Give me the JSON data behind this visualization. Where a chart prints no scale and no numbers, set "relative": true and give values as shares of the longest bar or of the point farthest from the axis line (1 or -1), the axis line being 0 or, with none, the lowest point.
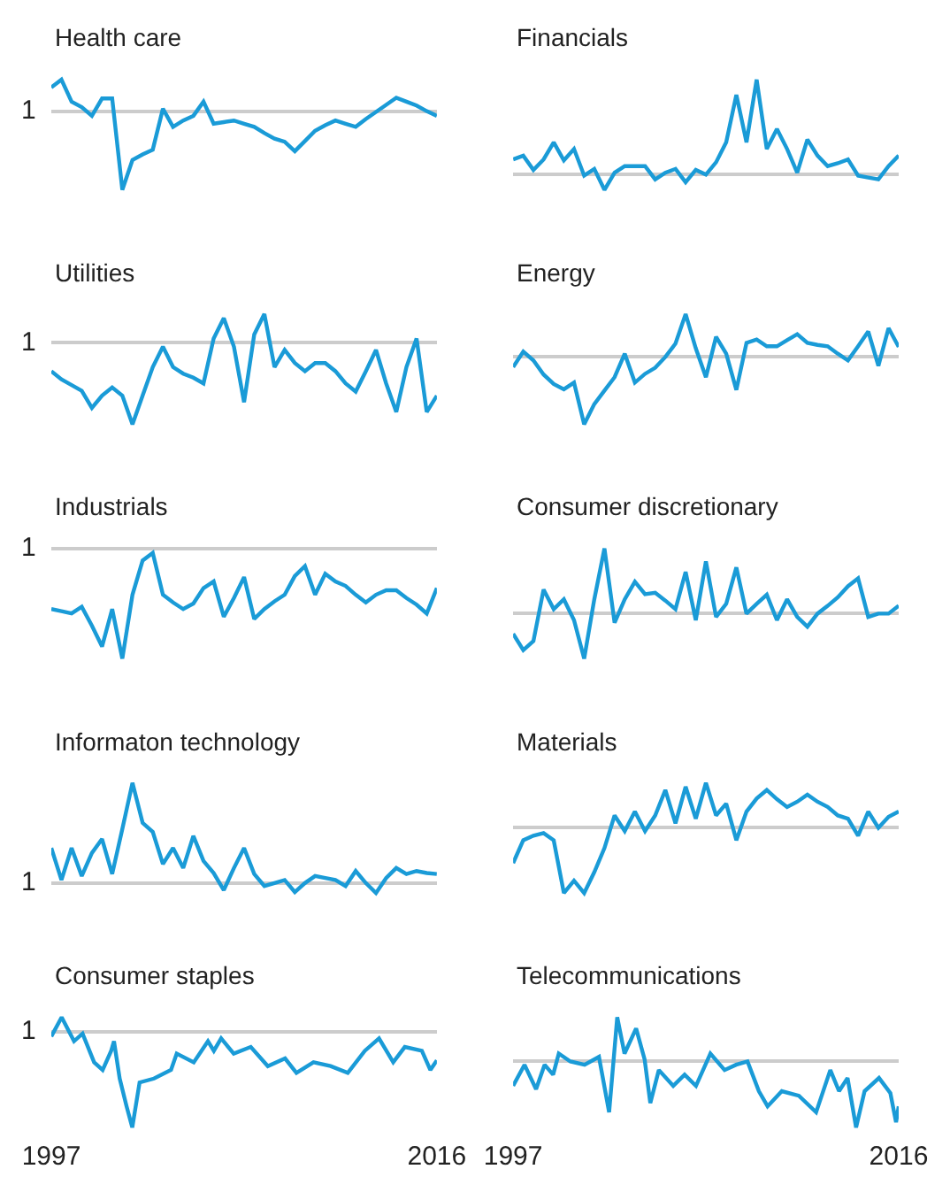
{
  "chart_data": [
    {
      "type": "line",
      "title": "Health care",
      "relative": true,
      "color": "#1a9bd7",
      "line_style": "solid",
      "marker": "none",
      "annotations": [
        "1"
      ],
      "categories": [
        null,
        null,
        null,
        null,
        null,
        null,
        null,
        null,
        null,
        null,
        null,
        null,
        null,
        null,
        null,
        null,
        null,
        null,
        null,
        null,
        null,
        null,
        null,
        null,
        null,
        null,
        null,
        null,
        null,
        null,
        null,
        null,
        null,
        null,
        null,
        null,
        null,
        null,
        null
      ],
      "values": [
        0.3,
        0.4,
        0.12,
        0.05,
        -0.06,
        0.16,
        0.16,
        -1,
        -0.62,
        -0.55,
        -0.49,
        0.03,
        -0.2,
        -0.12,
        -0.06,
        0.12,
        -0.16,
        -0.14,
        -0.12,
        -0.16,
        -0.2,
        -0.28,
        -0.35,
        -0.39,
        -0.51,
        -0.38,
        -0.25,
        -0.18,
        -0.12,
        -0.16,
        -0.2,
        -0.1,
        -0.01,
        0.08,
        0.17,
        0.12,
        0.07,
        0.0,
        -0.06
      ]
    },
    {
      "type": "line",
      "title": "Financials",
      "relative": true,
      "color": "#1a9bd7",
      "line_style": "solid",
      "marker": "none",
      "categories": [
        null,
        null,
        null,
        null,
        null,
        null,
        null,
        null,
        null,
        null,
        null,
        null,
        null,
        null,
        null,
        null,
        null,
        null,
        null,
        null,
        null,
        null,
        null,
        null,
        null,
        null,
        null,
        null,
        null,
        null,
        null,
        null,
        null,
        null,
        null,
        null,
        null,
        null,
        null
      ],
      "values": [
        0.16,
        0.2,
        0.05,
        0.16,
        0.34,
        0.15,
        0.27,
        -0.01,
        0.06,
        -0.16,
        0.02,
        0.09,
        0.09,
        0.09,
        -0.05,
        0.02,
        0.06,
        -0.08,
        0.05,
        0,
        0.13,
        0.34,
        0.84,
        0.34,
        1,
        0.27,
        0.48,
        0.27,
        0.02,
        0.37,
        0.2,
        0.09,
        0.12,
        0.16,
        -0.01,
        -0.03,
        -0.05,
        0.09,
        0.2
      ]
    },
    {
      "type": "line",
      "title": "Utilities",
      "relative": true,
      "color": "#1a9bd7",
      "line_style": "solid",
      "marker": "none",
      "annotations": [
        "1"
      ],
      "categories": [
        null,
        null,
        null,
        null,
        null,
        null,
        null,
        null,
        null,
        null,
        null,
        null,
        null,
        null,
        null,
        null,
        null,
        null,
        null,
        null,
        null,
        null,
        null,
        null,
        null,
        null,
        null,
        null,
        null,
        null,
        null,
        null,
        null,
        null,
        null,
        null,
        null,
        null,
        null
      ],
      "values": [
        -0.35,
        -0.45,
        -0.52,
        -0.59,
        -0.8,
        -0.65,
        -0.55,
        -0.65,
        -1,
        -0.65,
        -0.3,
        -0.05,
        -0.3,
        -0.38,
        -0.43,
        -0.5,
        0.05,
        0.3,
        -0.05,
        -0.73,
        0.1,
        0.35,
        -0.3,
        -0.09,
        -0.25,
        -0.35,
        -0.25,
        -0.25,
        -0.35,
        -0.5,
        -0.6,
        -0.35,
        -0.09,
        -0.5,
        -0.85,
        -0.3,
        0.05,
        -0.85,
        -0.65
      ]
    },
    {
      "type": "line",
      "title": "Energy",
      "relative": true,
      "color": "#1a9bd7",
      "line_style": "solid",
      "marker": "none",
      "categories": [
        null,
        null,
        null,
        null,
        null,
        null,
        null,
        null,
        null,
        null,
        null,
        null,
        null,
        null,
        null,
        null,
        null,
        null,
        null,
        null,
        null,
        null,
        null,
        null,
        null,
        null,
        null,
        null,
        null,
        null,
        null,
        null,
        null,
        null,
        null,
        null,
        null,
        null,
        null
      ],
      "values": [
        -0.15,
        0.08,
        -0.05,
        -0.26,
        -0.4,
        -0.48,
        -0.38,
        -1,
        -0.7,
        -0.5,
        -0.3,
        0.05,
        -0.38,
        -0.25,
        -0.16,
        0,
        0.2,
        0.64,
        0.13,
        -0.3,
        0.3,
        0.05,
        -0.49,
        0.21,
        0.26,
        0.16,
        0.16,
        0.25,
        0.34,
        0.21,
        0.18,
        0.16,
        0.05,
        -0.05,
        0.16,
        0.38,
        -0.13,
        0.43,
        0.15
      ]
    },
    {
      "type": "line",
      "title": "Industrials",
      "relative": true,
      "color": "#1a9bd7",
      "line_style": "solid",
      "marker": "none",
      "annotations": [
        "1"
      ],
      "categories": [
        null,
        null,
        null,
        null,
        null,
        null,
        null,
        null,
        null,
        null,
        null,
        null,
        null,
        null,
        null,
        null,
        null,
        null,
        null,
        null,
        null,
        null,
        null,
        null,
        null,
        null,
        null,
        null,
        null,
        null,
        null,
        null,
        null,
        null,
        null,
        null,
        null,
        null,
        null
      ],
      "values": [
        -0.55,
        -0.57,
        -0.59,
        -0.53,
        -0.7,
        -0.89,
        -0.55,
        -1,
        -0.42,
        -0.11,
        -0.04,
        -0.42,
        -0.49,
        -0.55,
        -0.5,
        -0.36,
        -0.3,
        -0.62,
        -0.45,
        -0.26,
        -0.64,
        -0.55,
        -0.48,
        -0.42,
        -0.25,
        -0.16,
        -0.42,
        -0.23,
        -0.3,
        -0.34,
        -0.42,
        -0.49,
        -0.42,
        -0.38,
        -0.38,
        -0.45,
        -0.51,
        -0.59,
        -0.36
      ]
    },
    {
      "type": "line",
      "title": "Consumer discretionary",
      "relative": true,
      "color": "#1a9bd7",
      "line_style": "solid",
      "marker": "none",
      "categories": [
        null,
        null,
        null,
        null,
        null,
        null,
        null,
        null,
        null,
        null,
        null,
        null,
        null,
        null,
        null,
        null,
        null,
        null,
        null,
        null,
        null,
        null,
        null,
        null,
        null,
        null,
        null,
        null,
        null,
        null,
        null,
        null,
        null,
        null,
        null,
        null,
        null,
        null,
        null
      ],
      "values": [
        -0.31,
        -0.56,
        -0.42,
        0.37,
        0.07,
        0.22,
        -0.1,
        -0.69,
        0.22,
        1,
        -0.14,
        0.22,
        0.49,
        0.3,
        0.32,
        0.2,
        0.07,
        0.64,
        -0.1,
        0.8,
        -0.05,
        0.15,
        0.71,
        0,
        0.15,
        0.29,
        -0.1,
        0.22,
        -0.05,
        -0.2,
        0,
        0.12,
        0.25,
        0.42,
        0.54,
        -0.05,
        0,
        0,
        0.12
      ]
    },
    {
      "type": "line",
      "title": "Informaton technology",
      "relative": true,
      "color": "#1a9bd7",
      "line_style": "solid",
      "marker": "none",
      "annotations": [
        "1"
      ],
      "categories": [
        null,
        null,
        null,
        null,
        null,
        null,
        null,
        null,
        null,
        null,
        null,
        null,
        null,
        null,
        null,
        null,
        null,
        null,
        null,
        null,
        null,
        null,
        null,
        null,
        null,
        null,
        null,
        null,
        null,
        null,
        null,
        null,
        null,
        null,
        null,
        null,
        null,
        null,
        null
      ],
      "values": [
        0.35,
        0.03,
        0.35,
        0.07,
        0.3,
        0.44,
        0.09,
        0.54,
        1,
        0.6,
        0.51,
        0.19,
        0.35,
        0.15,
        0.47,
        0.22,
        0.1,
        -0.07,
        0.15,
        0.35,
        0.09,
        -0.03,
        0,
        0.03,
        -0.09,
        0,
        0.07,
        0.05,
        0.03,
        -0.03,
        0.12,
        0,
        -0.1,
        0.05,
        0.15,
        0.09,
        0.12,
        0.1,
        0.09
      ]
    },
    {
      "type": "line",
      "title": "Materials",
      "relative": true,
      "color": "#1a9bd7",
      "line_style": "solid",
      "marker": "none",
      "categories": [
        null,
        null,
        null,
        null,
        null,
        null,
        null,
        null,
        null,
        null,
        null,
        null,
        null,
        null,
        null,
        null,
        null,
        null,
        null,
        null,
        null,
        null,
        null,
        null,
        null,
        null,
        null,
        null,
        null,
        null,
        null,
        null,
        null,
        null,
        null,
        null,
        null,
        null,
        null
      ],
      "values": [
        -0.54,
        -0.19,
        -0.12,
        -0.08,
        -0.19,
        -1,
        -0.81,
        -1,
        -0.68,
        -0.31,
        0.19,
        -0.05,
        0.25,
        -0.05,
        0.19,
        0.58,
        0.07,
        0.63,
        0.14,
        0.69,
        0.19,
        0.37,
        -0.19,
        0.25,
        0.45,
        0.58,
        0.44,
        0.32,
        0.4,
        0.51,
        0.4,
        0.32,
        0.19,
        0.14,
        -0.12,
        0.25,
        0,
        0.17,
        0.25
      ]
    },
    {
      "type": "line",
      "title": "Consumer staples",
      "relative": true,
      "color": "#1a9bd7",
      "line_style": "solid",
      "marker": "none",
      "tick_labels": "x",
      "xlim": [
        1997,
        2016
      ],
      "xticks": [
        1997,
        2016
      ],
      "annotations": [
        "1"
      ],
      "x": [
        1997,
        1997.51,
        1998.12,
        1998.54,
        1999.11,
        1999.53,
        1999.95,
        2000.09,
        2000.37,
        2000.71,
        2000.99,
        2001.35,
        2002.06,
        2002.9,
        2003.18,
        2004.02,
        2004.72,
        2005.01,
        2005.37,
        2005.99,
        2006.83,
        2007.67,
        2008.52,
        2009.08,
        2009.92,
        2010.76,
        2011.61,
        2012.45,
        2013.15,
        2013.85,
        2014.42,
        2015.26,
        2015.68,
        2016
      ],
      "values": [
        -0.05,
        0.15,
        -0.1,
        -0.02,
        -0.32,
        -0.4,
        -0.2,
        -0.1,
        -0.49,
        -0.78,
        -1,
        -0.53,
        -0.49,
        -0.4,
        -0.23,
        -0.32,
        -0.1,
        -0.2,
        -0.07,
        -0.23,
        -0.16,
        -0.36,
        -0.28,
        -0.43,
        -0.32,
        -0.36,
        -0.43,
        -0.2,
        -0.07,
        -0.32,
        -0.16,
        -0.2,
        -0.4,
        -0.3
      ]
    },
    {
      "type": "line",
      "title": "Telecommunications",
      "relative": true,
      "color": "#1a9bd7",
      "line_style": "solid",
      "marker": "none",
      "tick_labels": "x",
      "xlim": [
        1997,
        2016
      ],
      "xticks": [
        1997,
        2016
      ],
      "x": [
        1997,
        1997.56,
        1998.13,
        1998.55,
        1998.97,
        1999.25,
        1999.82,
        2000.52,
        2001.23,
        2001.73,
        2002.13,
        2002.49,
        2003.06,
        2003.48,
        2003.76,
        2004.18,
        2004.89,
        2005.45,
        2006.01,
        2006.72,
        2007.42,
        2007.99,
        2008.55,
        2009.11,
        2009.54,
        2010.24,
        2011.08,
        2011.93,
        2012.63,
        2013.06,
        2013.48,
        2013.9,
        2014.32,
        2015.03,
        2015.59,
        2015.87,
        2016
      ],
      "values": [
        -0.37,
        -0.05,
        -0.42,
        -0.05,
        -0.2,
        0.12,
        0,
        -0.05,
        0.07,
        -0.77,
        0.67,
        0.12,
        0.5,
        0.03,
        -0.63,
        -0.13,
        -0.37,
        -0.2,
        -0.37,
        0.12,
        -0.13,
        -0.05,
        0,
        -0.45,
        -0.68,
        -0.45,
        -0.52,
        -0.77,
        -0.13,
        -0.45,
        -0.25,
        -1,
        -0.45,
        -0.25,
        -0.48,
        -0.92,
        -0.68
      ]
    }
  ]
}
